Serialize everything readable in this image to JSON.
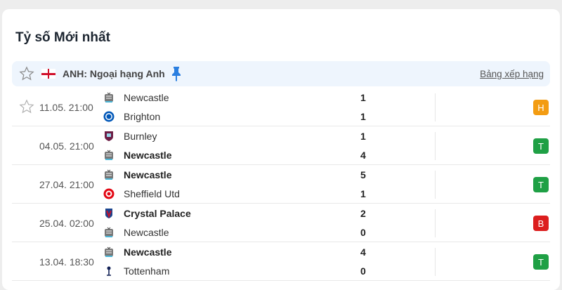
{
  "title": "Tỷ số Mới nhất",
  "league": {
    "name": "ANH: Ngoại hạng Anh",
    "standings_label": "Bảng xếp hạng",
    "flag": "england-flag"
  },
  "colors": {
    "H": "#f39c12",
    "T": "#1fa045",
    "B": "#dc1e1e",
    "pin": "#2b7fe0"
  },
  "matches": [
    {
      "time": "11.05. 21:00",
      "starred": true,
      "home": {
        "name": "Newcastle",
        "crest": "newcastle",
        "bold": false
      },
      "away": {
        "name": "Brighton",
        "crest": "brighton",
        "bold": false
      },
      "home_score": "1",
      "away_score": "1",
      "result": "H"
    },
    {
      "time": "04.05. 21:00",
      "home": {
        "name": "Burnley",
        "crest": "burnley",
        "bold": false
      },
      "away": {
        "name": "Newcastle",
        "crest": "newcastle",
        "bold": true
      },
      "home_score": "1",
      "away_score": "4",
      "result": "T"
    },
    {
      "time": "27.04. 21:00",
      "home": {
        "name": "Newcastle",
        "crest": "newcastle",
        "bold": true
      },
      "away": {
        "name": "Sheffield Utd",
        "crest": "sheffield",
        "bold": false
      },
      "home_score": "5",
      "away_score": "1",
      "result": "T"
    },
    {
      "time": "25.04. 02:00",
      "home": {
        "name": "Crystal Palace",
        "crest": "palace",
        "bold": true
      },
      "away": {
        "name": "Newcastle",
        "crest": "newcastle",
        "bold": false
      },
      "home_score": "2",
      "away_score": "0",
      "result": "B"
    },
    {
      "time": "13.04. 18:30",
      "home": {
        "name": "Newcastle",
        "crest": "newcastle",
        "bold": true
      },
      "away": {
        "name": "Tottenham",
        "crest": "tottenham",
        "bold": false
      },
      "home_score": "4",
      "away_score": "0",
      "result": "T"
    }
  ]
}
